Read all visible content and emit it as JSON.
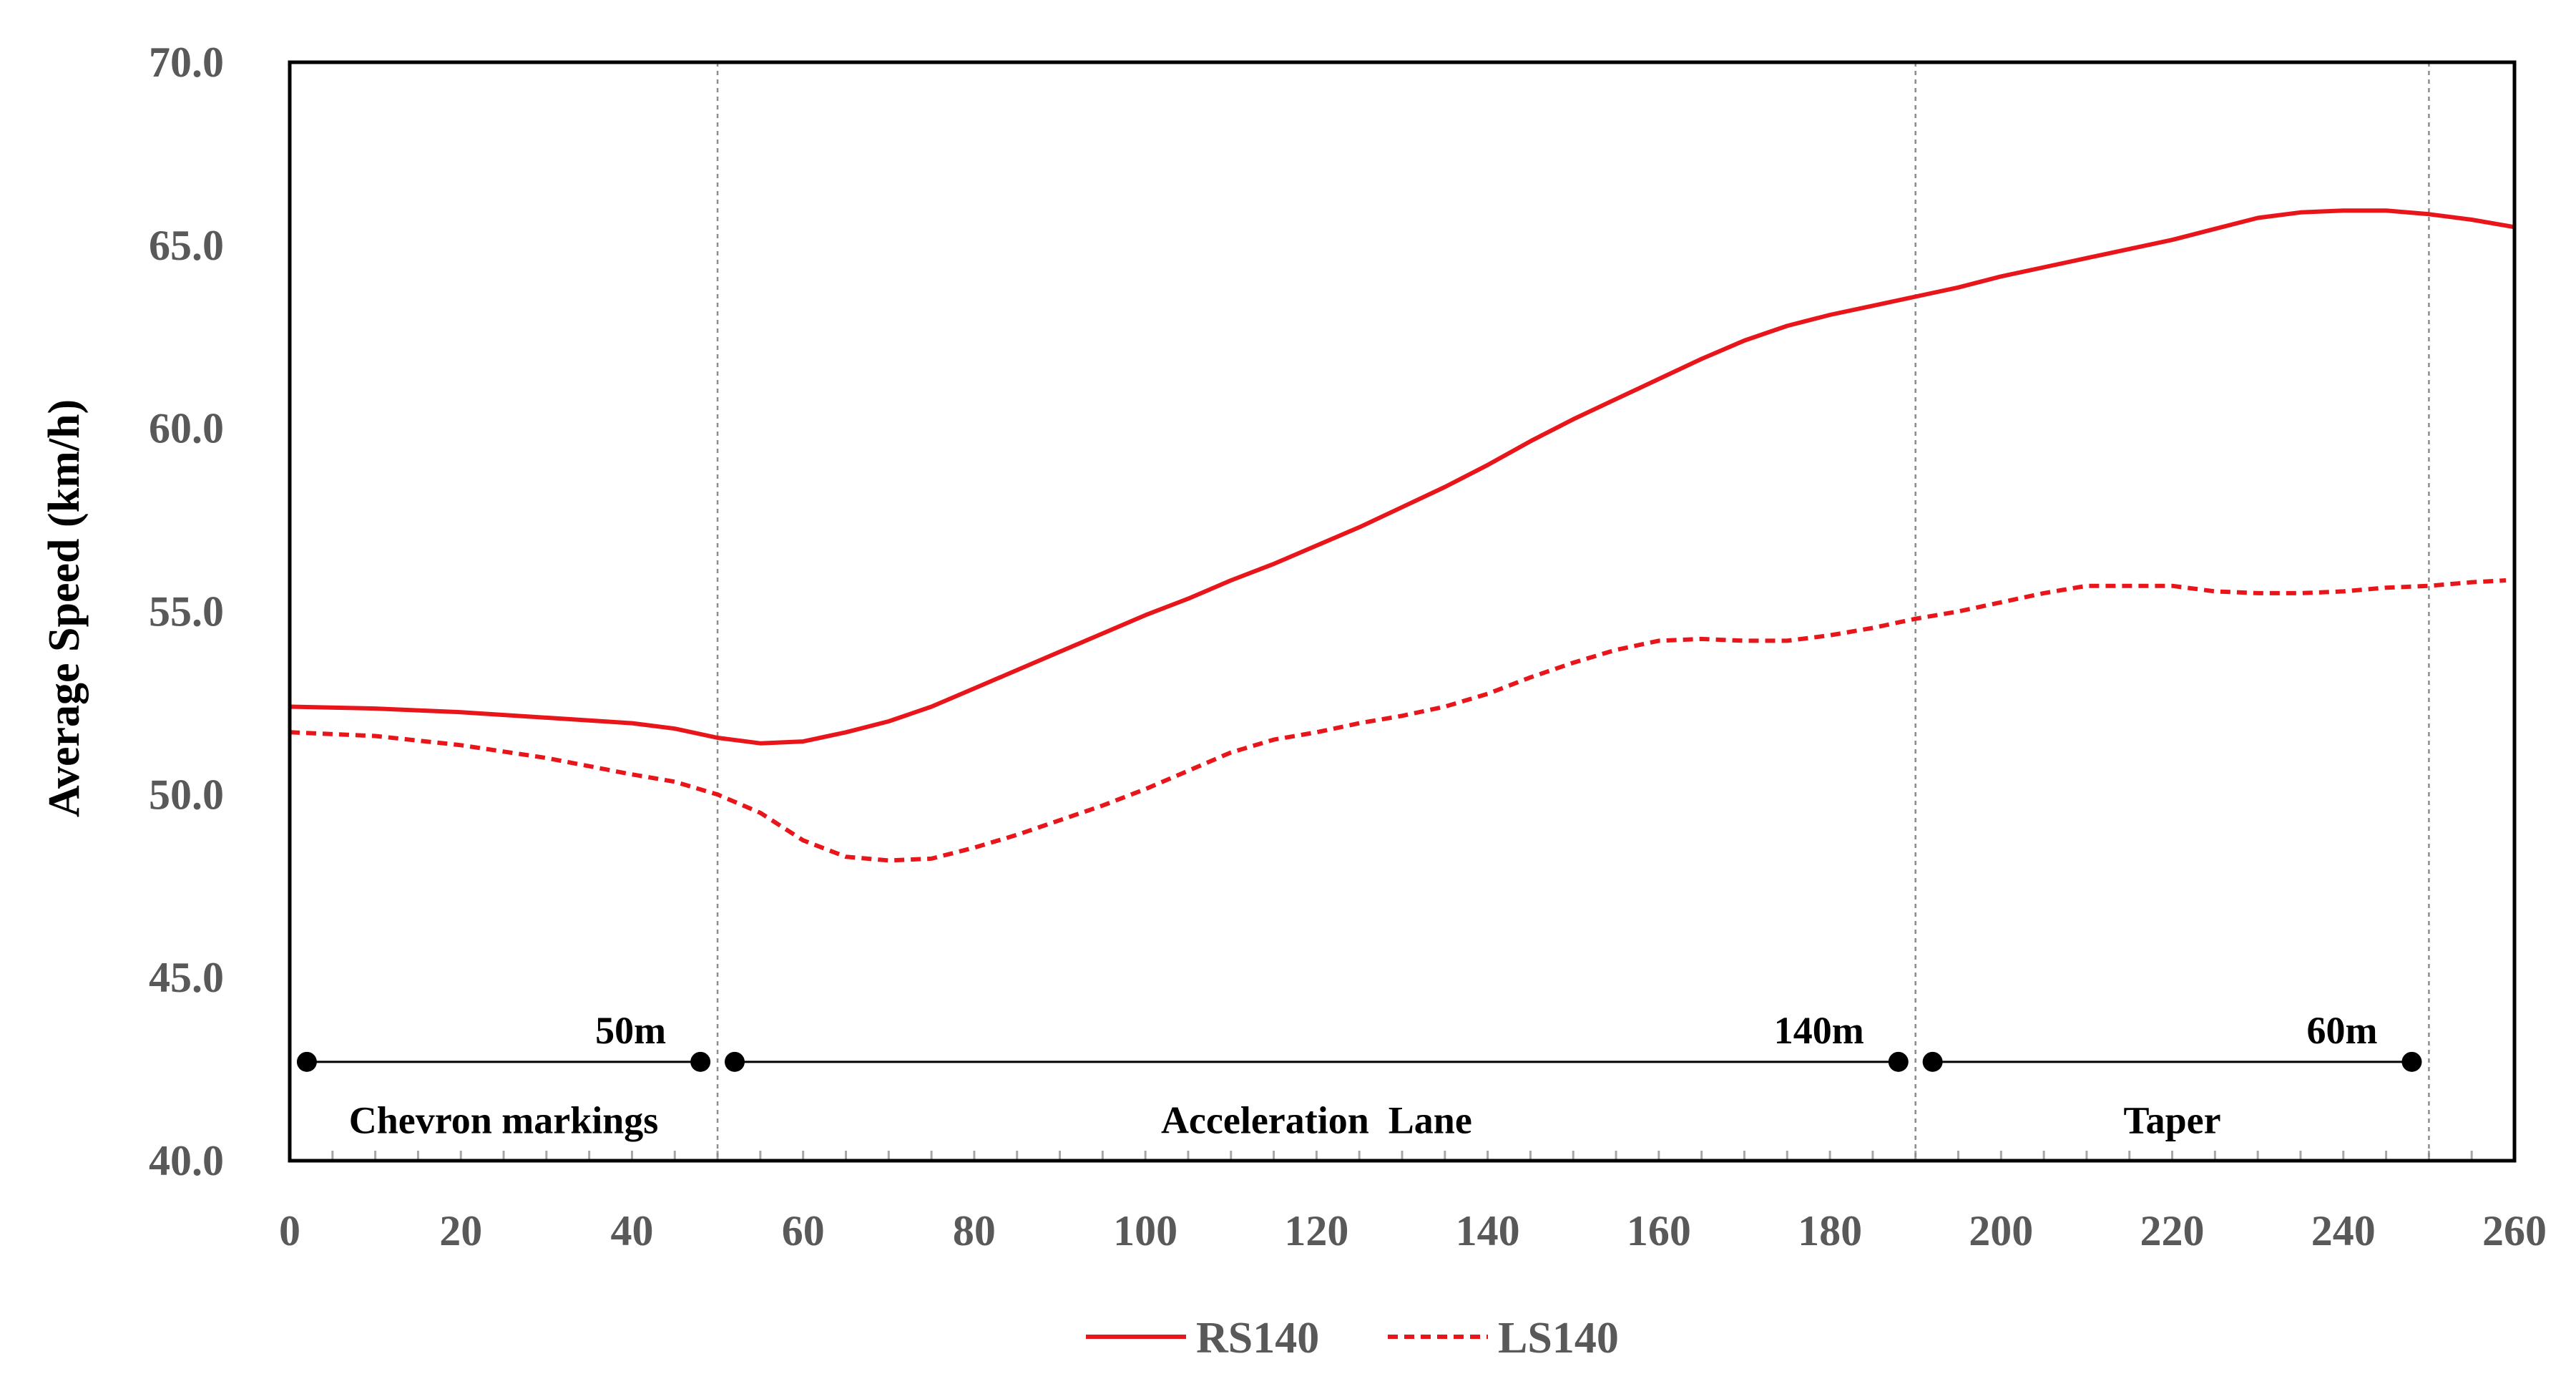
{
  "chart_data": {
    "type": "line",
    "title": "",
    "xlabel": "",
    "ylabel": "Average Speed (km/h)",
    "xlim": [
      0,
      260
    ],
    "ylim": [
      40,
      70
    ],
    "x_ticks": [
      0,
      20,
      40,
      60,
      80,
      100,
      120,
      140,
      160,
      180,
      200,
      220,
      240,
      260
    ],
    "x_tick_labels": [
      "0",
      "20",
      "40",
      "60",
      "80",
      "100",
      "120",
      "140",
      "160",
      "180",
      "200",
      "220",
      "240",
      "260"
    ],
    "y_ticks": [
      40,
      45,
      50,
      55,
      60,
      65,
      70
    ],
    "y_tick_labels": [
      "40.0",
      "45.0",
      "50.0",
      "55.0",
      "60.0",
      "65.0",
      "70.0"
    ],
    "grid": false,
    "legend_position": "bottom-center",
    "colors": {
      "series": "#e8161b",
      "text": "#595959",
      "axis": "#000000",
      "divider": "#8c8c8c"
    },
    "section_dividers": [
      50,
      190,
      250
    ],
    "segments": [
      {
        "label": "Chevron markings",
        "length_label": "50m",
        "start": 2,
        "end": 48,
        "label_center": 25
      },
      {
        "label": "Acceleration  Lane",
        "length_label": "140m",
        "start": 52,
        "end": 188,
        "label_center": 120
      },
      {
        "label": "Taper",
        "length_label": "60m",
        "start": 192,
        "end": 248,
        "label_center": 220
      }
    ],
    "segment_line_y": 42.7,
    "segment_label_y": 41.1,
    "series": [
      {
        "name": "RS140",
        "style": "solid",
        "x": [
          0,
          10,
          20,
          30,
          40,
          45,
          50,
          55,
          60,
          65,
          70,
          75,
          80,
          85,
          90,
          95,
          100,
          105,
          110,
          115,
          120,
          125,
          130,
          135,
          140,
          145,
          150,
          155,
          160,
          165,
          170,
          175,
          180,
          185,
          190,
          195,
          200,
          205,
          210,
          215,
          220,
          225,
          230,
          235,
          240,
          245,
          250,
          255,
          260
        ],
        "values": [
          52.4,
          52.35,
          52.25,
          52.1,
          51.95,
          51.8,
          51.55,
          51.4,
          51.45,
          51.7,
          52.0,
          52.4,
          52.9,
          53.4,
          53.9,
          54.4,
          54.9,
          55.35,
          55.85,
          56.3,
          56.8,
          57.3,
          57.85,
          58.4,
          59.0,
          59.65,
          60.25,
          60.8,
          61.35,
          61.9,
          62.4,
          62.8,
          63.1,
          63.35,
          63.6,
          63.85,
          64.15,
          64.4,
          64.65,
          64.9,
          65.15,
          65.45,
          65.75,
          65.9,
          65.95,
          65.95,
          65.85,
          65.7,
          65.5
        ]
      },
      {
        "name": "LS140",
        "style": "dashed",
        "x": [
          0,
          10,
          20,
          30,
          40,
          45,
          50,
          55,
          60,
          65,
          70,
          75,
          80,
          85,
          90,
          95,
          100,
          105,
          110,
          115,
          120,
          125,
          130,
          135,
          140,
          145,
          150,
          155,
          160,
          165,
          170,
          175,
          180,
          185,
          190,
          195,
          200,
          205,
          210,
          215,
          220,
          225,
          230,
          235,
          240,
          245,
          250,
          255,
          259
        ],
        "values": [
          51.7,
          51.6,
          51.35,
          51.0,
          50.55,
          50.35,
          50.0,
          49.5,
          48.75,
          48.3,
          48.2,
          48.25,
          48.55,
          48.9,
          49.3,
          49.7,
          50.15,
          50.65,
          51.15,
          51.5,
          51.7,
          51.95,
          52.15,
          52.4,
          52.75,
          53.2,
          53.6,
          53.95,
          54.2,
          54.25,
          54.2,
          54.2,
          54.35,
          54.55,
          54.8,
          55.0,
          55.25,
          55.5,
          55.7,
          55.7,
          55.7,
          55.55,
          55.5,
          55.5,
          55.55,
          55.65,
          55.7,
          55.8,
          55.85
        ]
      }
    ]
  }
}
